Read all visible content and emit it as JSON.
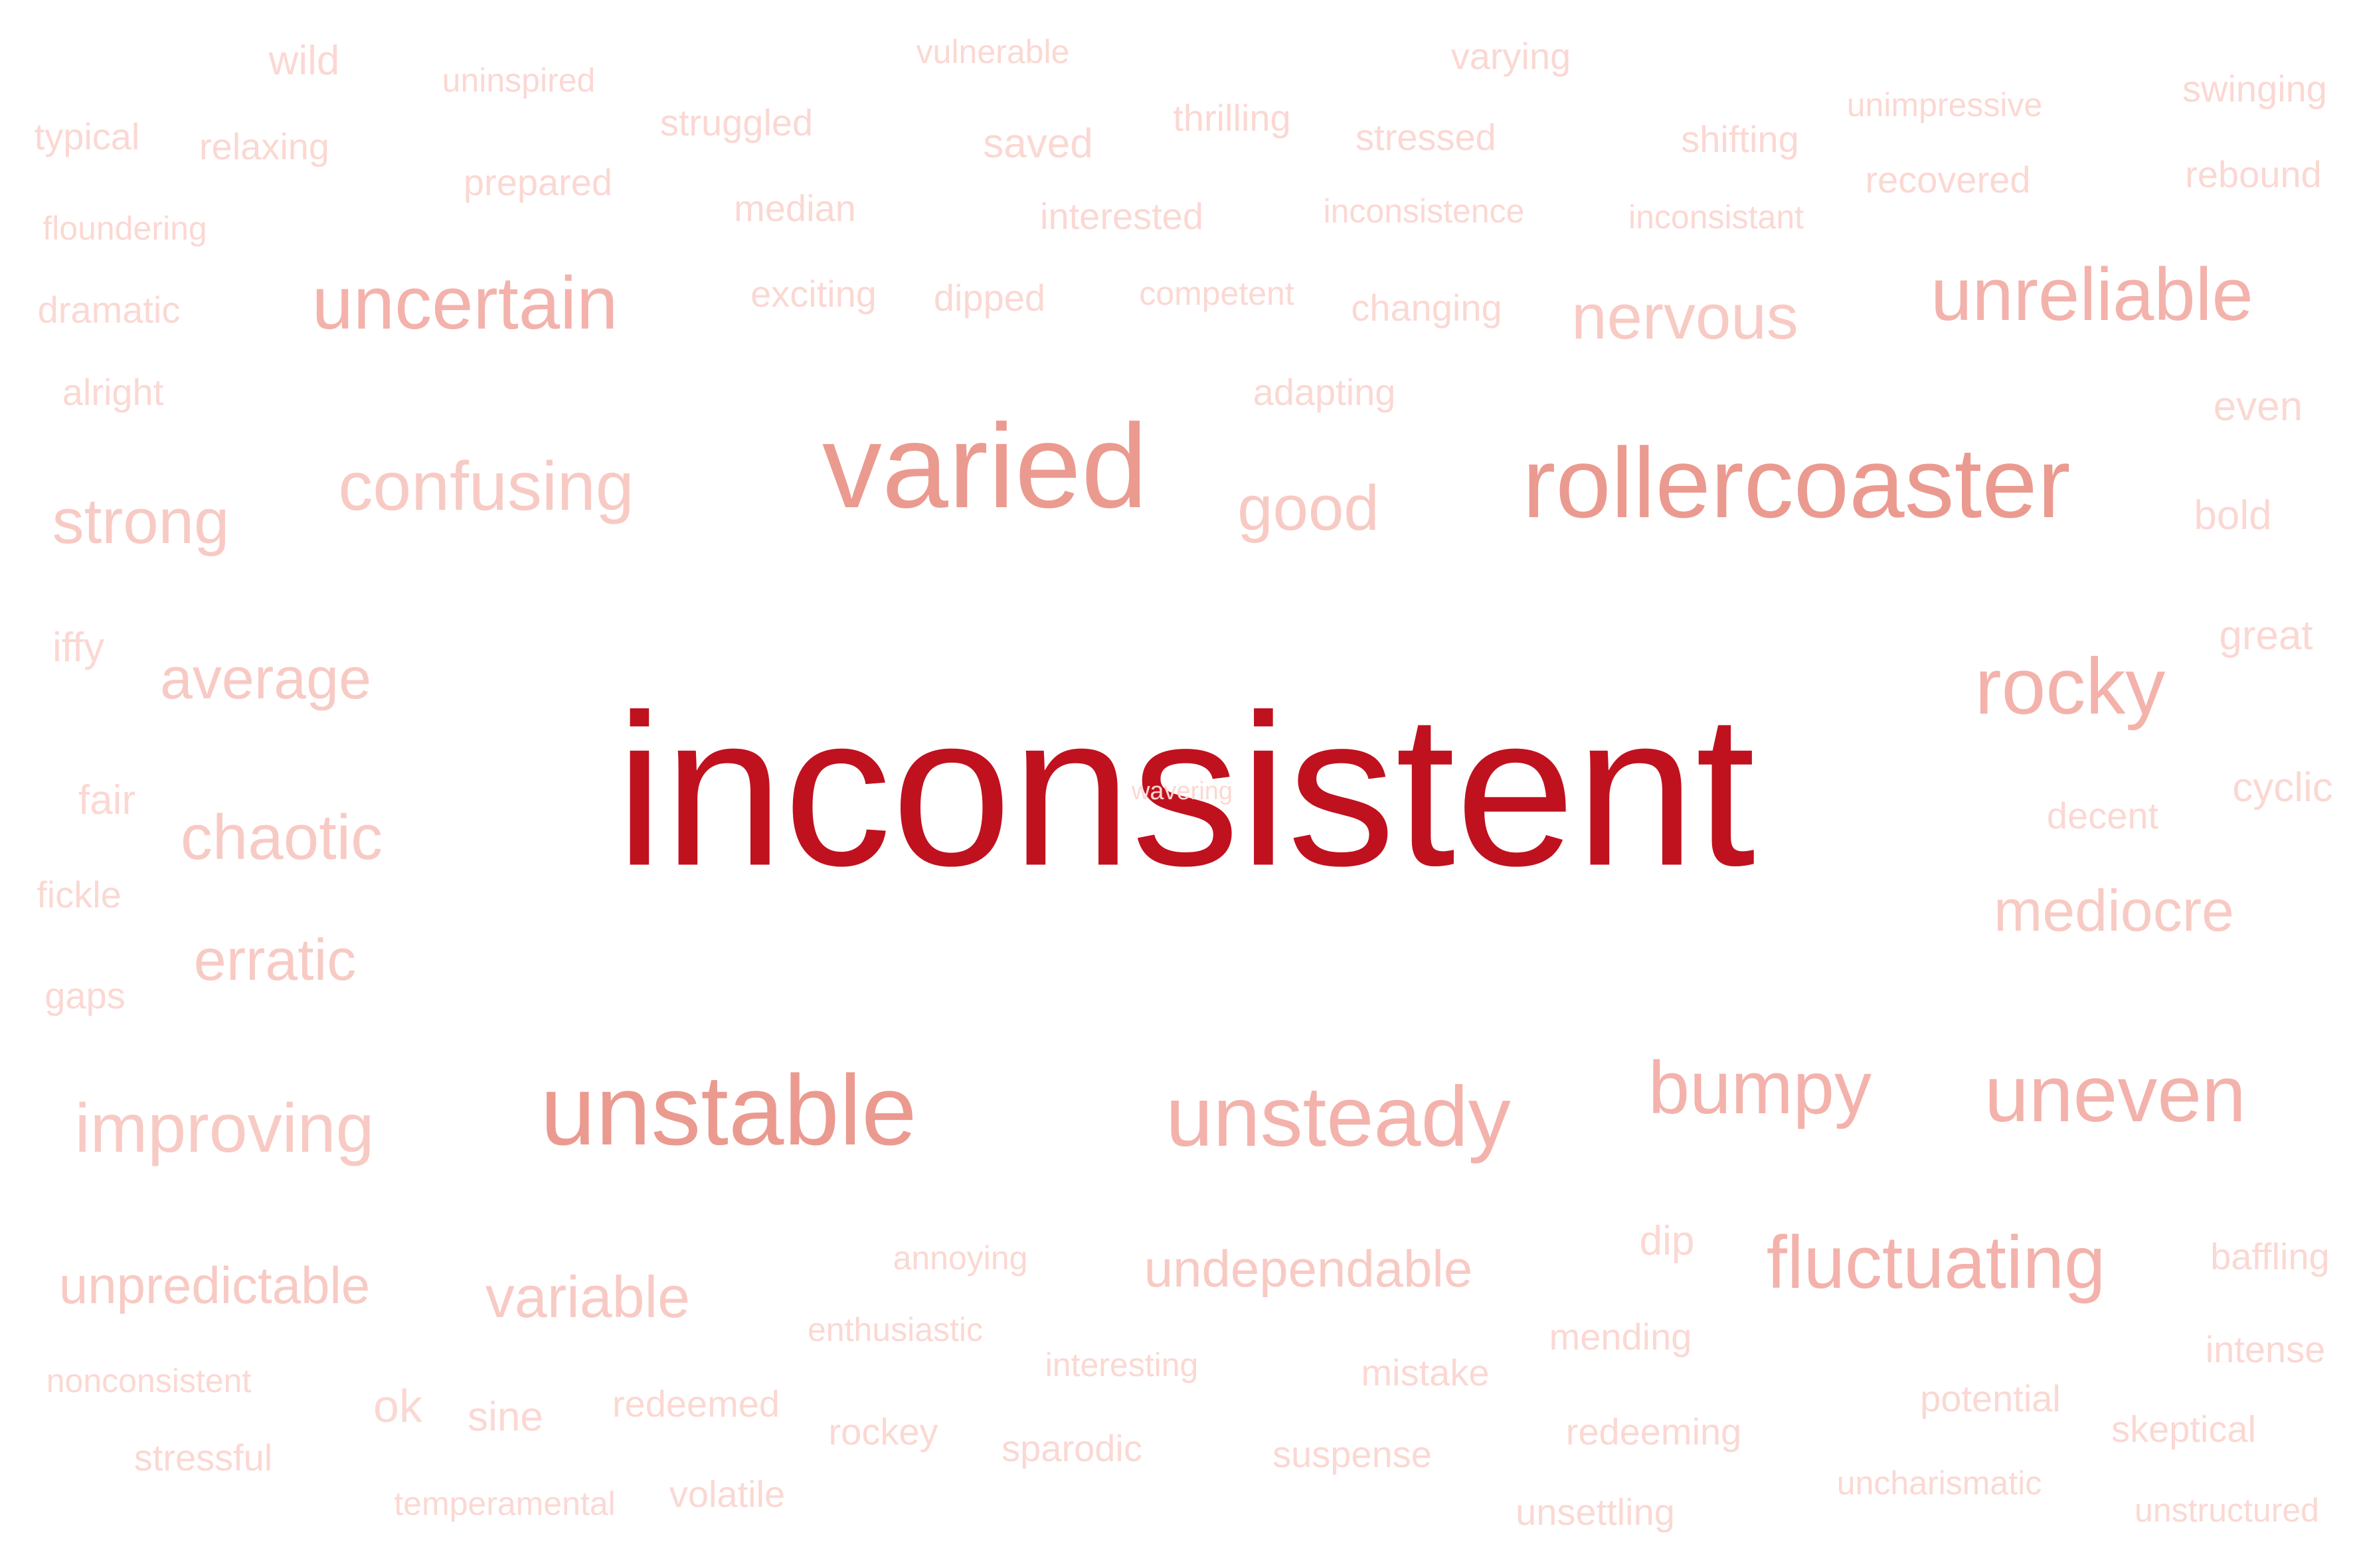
{
  "colors": {
    "primary": "#c0111f",
    "strong": "#eb9a90",
    "medium": "#f3b2ab",
    "light": "#f8cac4",
    "faint": "#fbd8d3"
  },
  "words": [
    {
      "text": "inconsistent",
      "weight": 100,
      "color": "primary"
    },
    {
      "text": "varied",
      "weight": 55,
      "color": "strong"
    },
    {
      "text": "rollercoaster",
      "weight": 46,
      "color": "strong"
    },
    {
      "text": "unstable",
      "weight": 46,
      "color": "strong"
    },
    {
      "text": "unsteady",
      "weight": 40,
      "color": "medium"
    },
    {
      "text": "unreliable",
      "weight": 34,
      "color": "medium"
    },
    {
      "text": "uncertain",
      "weight": 34,
      "color": "medium"
    },
    {
      "text": "confusing",
      "weight": 32,
      "color": "light"
    },
    {
      "text": "rocky",
      "weight": 36,
      "color": "medium"
    },
    {
      "text": "bumpy",
      "weight": 34,
      "color": "medium"
    },
    {
      "text": "uneven",
      "weight": 36,
      "color": "medium"
    },
    {
      "text": "fluctuating",
      "weight": 32,
      "color": "medium"
    },
    {
      "text": "improving",
      "weight": 32,
      "color": "light"
    },
    {
      "text": "good",
      "weight": 30,
      "color": "light"
    },
    {
      "text": "strong",
      "weight": 28,
      "color": "light"
    },
    {
      "text": "nervous",
      "weight": 28,
      "color": "light"
    },
    {
      "text": "average",
      "weight": 27,
      "color": "light"
    },
    {
      "text": "chaotic",
      "weight": 28,
      "color": "light"
    },
    {
      "text": "erratic",
      "weight": 28,
      "color": "light"
    },
    {
      "text": "mediocre",
      "weight": 26,
      "color": "light"
    },
    {
      "text": "variable",
      "weight": 27,
      "color": "light"
    },
    {
      "text": "undependable",
      "weight": 24,
      "color": "light"
    },
    {
      "text": "unpredictable",
      "weight": 24,
      "color": "light"
    },
    {
      "text": "wild",
      "weight": 18,
      "color": "faint"
    },
    {
      "text": "uninspired",
      "weight": 14,
      "color": "faint"
    },
    {
      "text": "vulnerable",
      "weight": 14,
      "color": "faint"
    },
    {
      "text": "varying",
      "weight": 15,
      "color": "faint"
    },
    {
      "text": "swinging",
      "weight": 15,
      "color": "faint"
    },
    {
      "text": "typical",
      "weight": 17,
      "color": "faint"
    },
    {
      "text": "relaxing",
      "weight": 15,
      "color": "faint"
    },
    {
      "text": "struggled",
      "weight": 15,
      "color": "faint"
    },
    {
      "text": "saved",
      "weight": 18,
      "color": "faint"
    },
    {
      "text": "thrilling",
      "weight": 17,
      "color": "faint"
    },
    {
      "text": "stressed",
      "weight": 17,
      "color": "faint"
    },
    {
      "text": "shifting",
      "weight": 17,
      "color": "faint"
    },
    {
      "text": "unimpressive",
      "weight": 14,
      "color": "faint"
    },
    {
      "text": "rebound",
      "weight": 17,
      "color": "faint"
    },
    {
      "text": "prepared",
      "weight": 15,
      "color": "faint"
    },
    {
      "text": "recovered",
      "weight": 16,
      "color": "faint"
    },
    {
      "text": "floundering",
      "weight": 14,
      "color": "faint"
    },
    {
      "text": "median",
      "weight": 17,
      "color": "faint"
    },
    {
      "text": "interested",
      "weight": 16,
      "color": "faint"
    },
    {
      "text": "inconsistence",
      "weight": 14,
      "color": "faint"
    },
    {
      "text": "inconsistant",
      "weight": 15,
      "color": "faint"
    },
    {
      "text": "dramatic",
      "weight": 15,
      "color": "faint"
    },
    {
      "text": "exciting",
      "weight": 16,
      "color": "faint"
    },
    {
      "text": "dipped",
      "weight": 17,
      "color": "faint"
    },
    {
      "text": "competent",
      "weight": 15,
      "color": "faint"
    },
    {
      "text": "changing",
      "weight": 15,
      "color": "faint"
    },
    {
      "text": "alright",
      "weight": 17,
      "color": "faint"
    },
    {
      "text": "adapting",
      "weight": 15,
      "color": "faint"
    },
    {
      "text": "even",
      "weight": 18,
      "color": "faint"
    },
    {
      "text": "bold",
      "weight": 18,
      "color": "faint"
    },
    {
      "text": "iffy",
      "weight": 19,
      "color": "faint"
    },
    {
      "text": "great",
      "weight": 18,
      "color": "faint"
    },
    {
      "text": "fair",
      "weight": 19,
      "color": "faint"
    },
    {
      "text": "wavering",
      "weight": 6,
      "color": "faint"
    },
    {
      "text": "decent",
      "weight": 17,
      "color": "faint"
    },
    {
      "text": "cyclic",
      "weight": 17,
      "color": "faint"
    },
    {
      "text": "fickle",
      "weight": 17,
      "color": "faint"
    },
    {
      "text": "gaps",
      "weight": 17,
      "color": "faint"
    },
    {
      "text": "dip",
      "weight": 19,
      "color": "faint"
    },
    {
      "text": "annoying",
      "weight": 15,
      "color": "faint"
    },
    {
      "text": "baffling",
      "weight": 15,
      "color": "faint"
    },
    {
      "text": "enthusiastic",
      "weight": 15,
      "color": "faint"
    },
    {
      "text": "mending",
      "weight": 16,
      "color": "faint"
    },
    {
      "text": "intense",
      "weight": 17,
      "color": "faint"
    },
    {
      "text": "nonconsistent",
      "weight": 14,
      "color": "faint"
    },
    {
      "text": "interesting",
      "weight": 15,
      "color": "faint"
    },
    {
      "text": "mistake",
      "weight": 17,
      "color": "faint"
    },
    {
      "text": "potential",
      "weight": 15,
      "color": "faint"
    },
    {
      "text": "ok",
      "weight": 21,
      "color": "faint"
    },
    {
      "text": "sine",
      "weight": 19,
      "color": "faint"
    },
    {
      "text": "redeemed",
      "weight": 15,
      "color": "faint"
    },
    {
      "text": "rockey",
      "weight": 17,
      "color": "faint"
    },
    {
      "text": "redeeming",
      "weight": 15,
      "color": "faint"
    },
    {
      "text": "skeptical",
      "weight": 16,
      "color": "faint"
    },
    {
      "text": "stressful",
      "weight": 17,
      "color": "faint"
    },
    {
      "text": "sparodic",
      "weight": 16,
      "color": "faint"
    },
    {
      "text": "suspense",
      "weight": 16,
      "color": "faint"
    },
    {
      "text": "uncharismatic",
      "weight": 14,
      "color": "faint"
    },
    {
      "text": "temperamental",
      "weight": 14,
      "color": "faint"
    },
    {
      "text": "volatile",
      "weight": 17,
      "color": "faint"
    },
    {
      "text": "unsettling",
      "weight": 16,
      "color": "faint"
    },
    {
      "text": "unstructured",
      "weight": 14,
      "color": "faint"
    }
  ]
}
